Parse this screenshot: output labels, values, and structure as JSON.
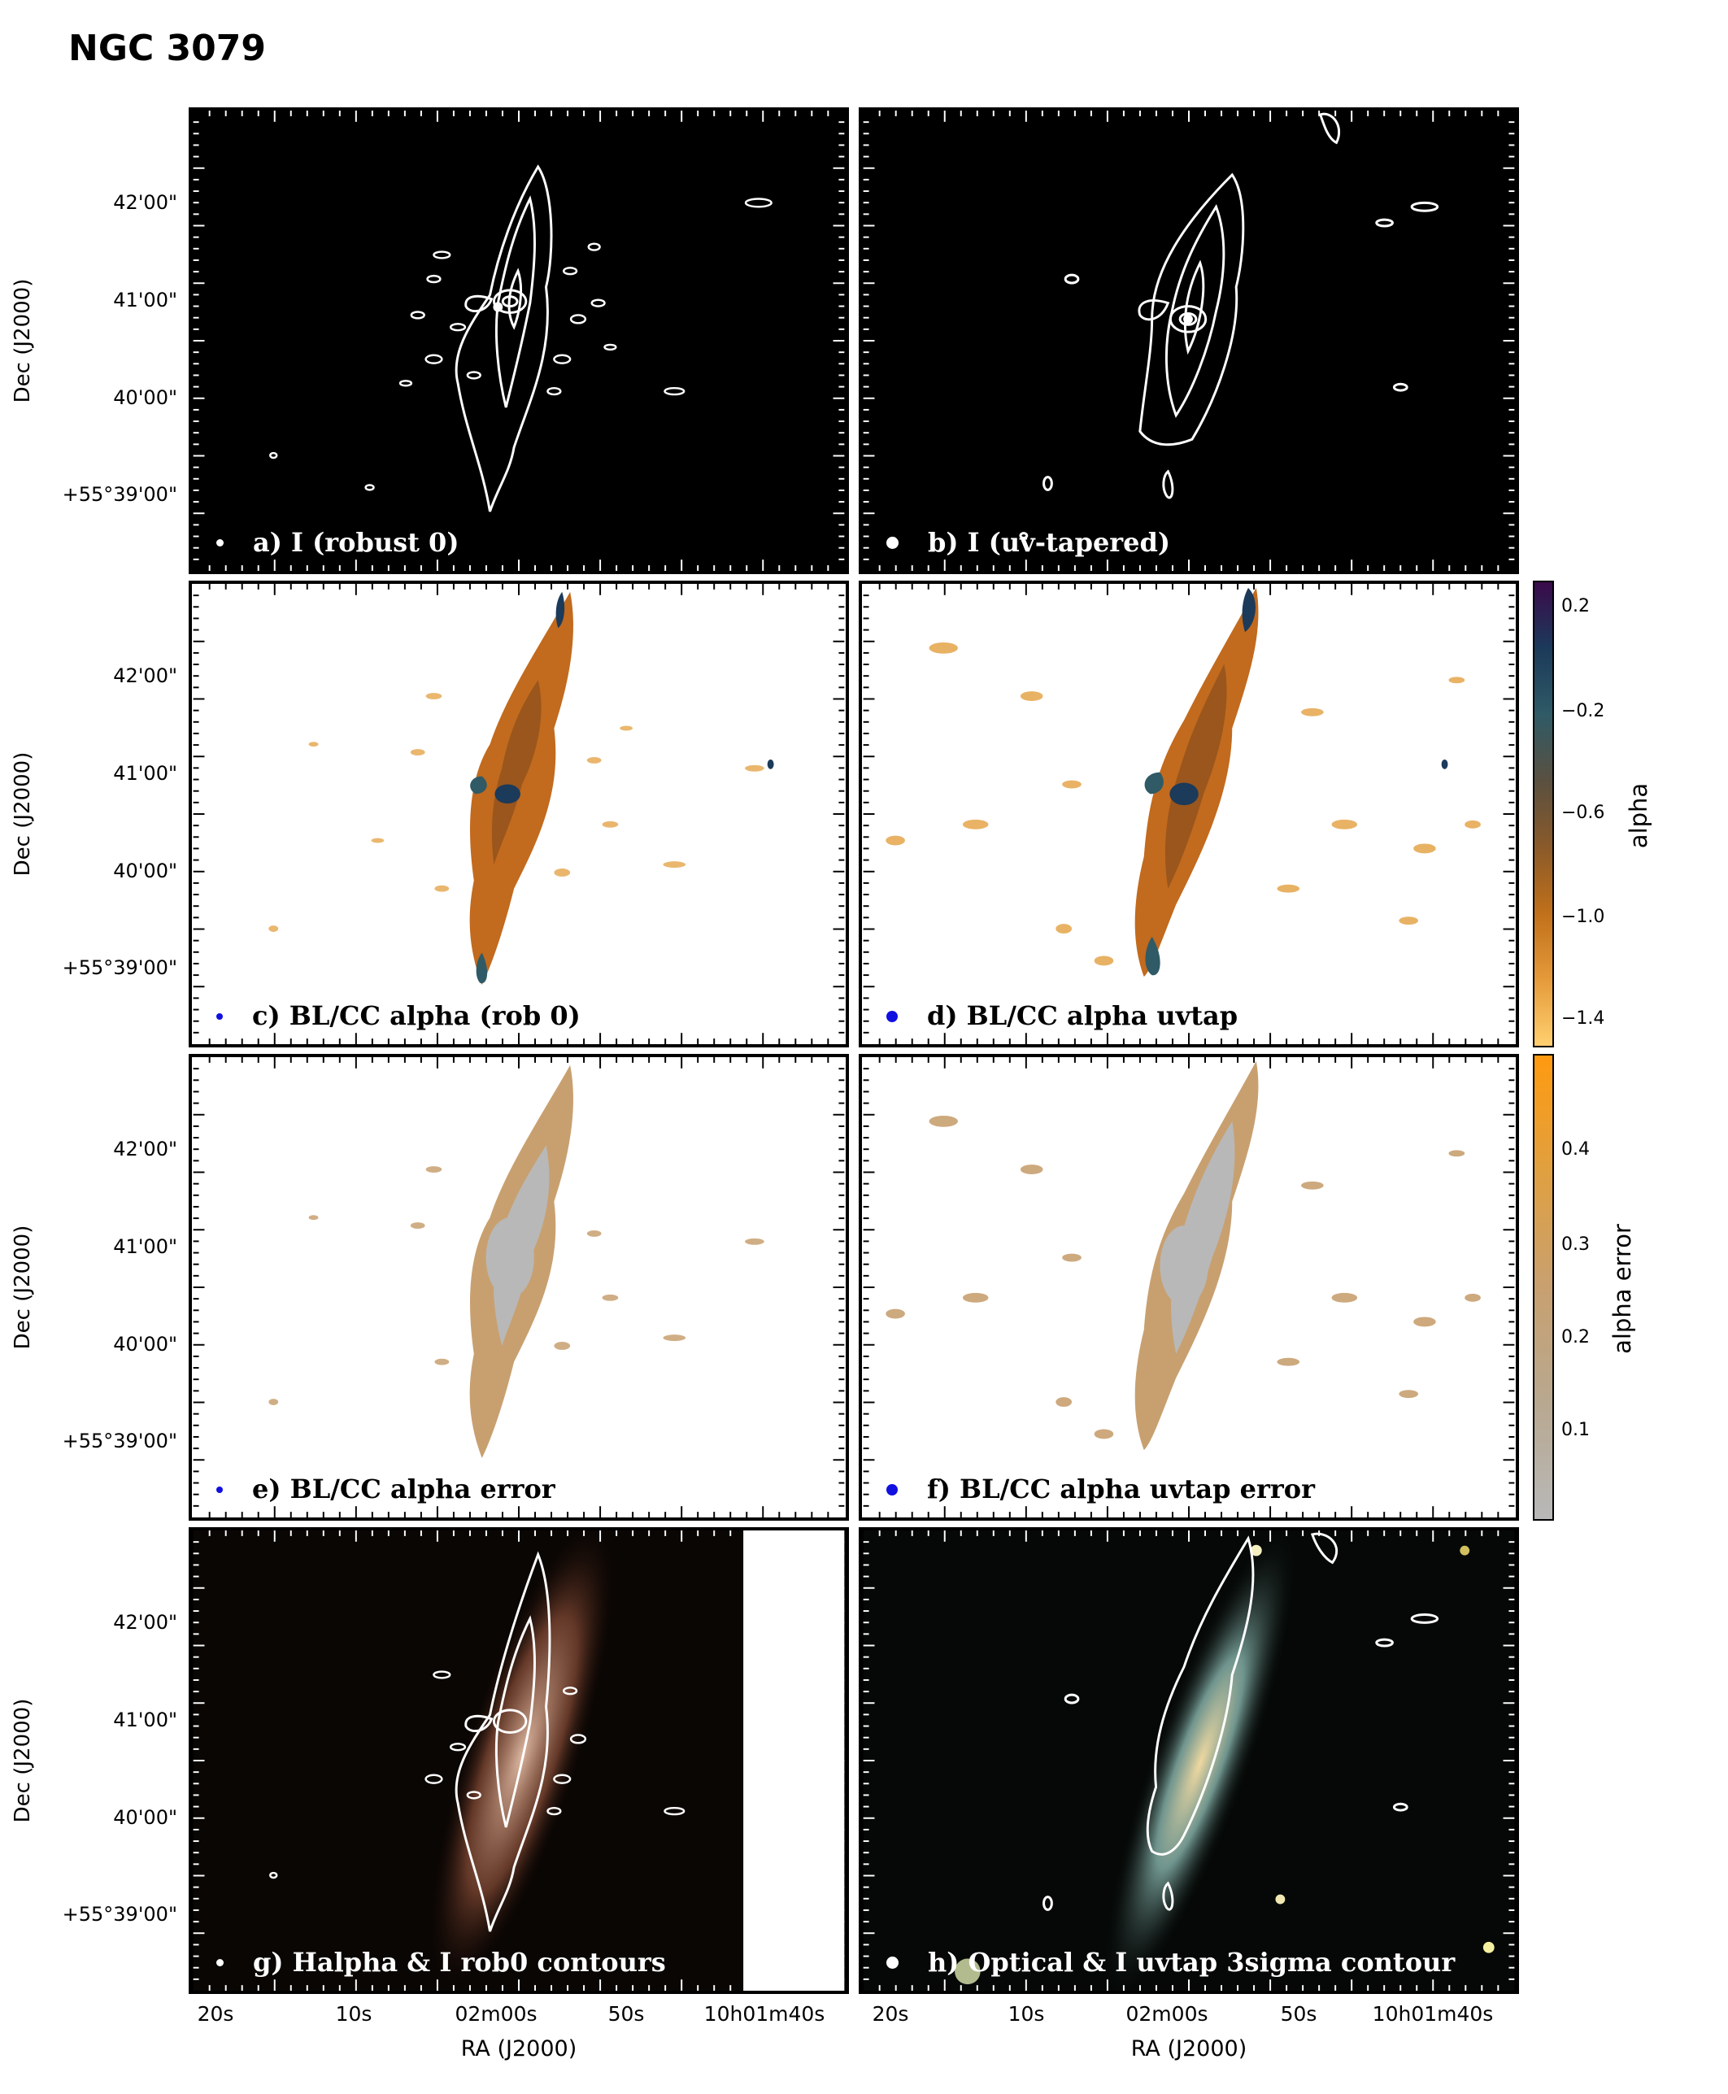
{
  "figure_title": "NGC 3079",
  "y_axis": {
    "label": "Dec (J2000)",
    "ticks": [
      "42'00\"",
      "41'00\"",
      "40'00\"",
      "+55°39'00\""
    ]
  },
  "x_axis": {
    "label": "RA (J2000)",
    "ticks": [
      "20s",
      "10s",
      "02m00s",
      "50s",
      "10h01m40s"
    ]
  },
  "panels": [
    {
      "id": "a",
      "label": "a) I (robust 0)",
      "background": "#000000",
      "beam_color": "#ffffff"
    },
    {
      "id": "b",
      "label": "b) I (uv-tapered)",
      "background": "#000000",
      "beam_color": "#ffffff"
    },
    {
      "id": "c",
      "label": "c) BL/CC alpha (rob 0)",
      "background": "#ffffff",
      "beam_color": "#1010e0"
    },
    {
      "id": "d",
      "label": "d) BL/CC alpha uvtap",
      "background": "#ffffff",
      "beam_color": "#1010e0"
    },
    {
      "id": "e",
      "label": "e)  BL/CC alpha error",
      "background": "#ffffff",
      "beam_color": "#1010e0"
    },
    {
      "id": "f",
      "label": "f) BL/CC alpha uvtap error",
      "background": "#ffffff",
      "beam_color": "#1010e0"
    },
    {
      "id": "g",
      "label": "g) Halpha & I rob0 contours",
      "background": "#000000",
      "beam_color": "#ffffff"
    },
    {
      "id": "h",
      "label": "h) Optical & I uvtap 3sigma contour",
      "background": "#000000",
      "beam_color": "#ffffff"
    }
  ],
  "colorbars": [
    {
      "label": "alpha",
      "ticks": [
        "0.2",
        "−0.2",
        "−0.6",
        "−1.0",
        "−1.4"
      ],
      "range": [
        -1.5,
        0.25
      ],
      "colors": [
        "#3a0a4a",
        "#1c3a5a",
        "#2f5a66",
        "#5a5040",
        "#8a5a2a",
        "#c0701a",
        "#e59a3a",
        "#ffd070"
      ]
    },
    {
      "label": "alpha error",
      "ticks": [
        "0.4",
        "0.3",
        "0.2",
        "0.1"
      ],
      "range": [
        0.0,
        0.5
      ],
      "colors": [
        "#ff9a10",
        "#e0a040",
        "#c8a070",
        "#b8a890",
        "#b8b8b8"
      ]
    }
  ]
}
